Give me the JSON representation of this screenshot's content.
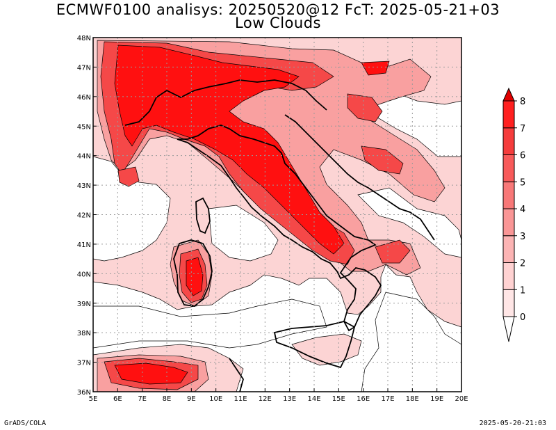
{
  "title": "ECMWF0100 analisys: 20250520@12 FcT: 2025-05-21+03",
  "subtitle": "Low Clouds",
  "map": {
    "lon_range": [
      5,
      20
    ],
    "lat_range": [
      36,
      48
    ],
    "lon_ticks": [
      "5E",
      "6E",
      "7E",
      "8E",
      "9E",
      "10E",
      "11E",
      "12E",
      "13E",
      "14E",
      "15E",
      "16E",
      "17E",
      "18E",
      "19E",
      "20E"
    ],
    "lat_ticks": [
      "36N",
      "37N",
      "38N",
      "39N",
      "40N",
      "41N",
      "42N",
      "43N",
      "44N",
      "45N",
      "46N",
      "47N",
      "48N"
    ],
    "grid": true,
    "field": "Low Clouds",
    "region": "Italy and surrounding seas"
  },
  "colorbar": {
    "levels": [
      "0",
      "1",
      "2",
      "3",
      "4",
      "5",
      "6",
      "7",
      "8"
    ],
    "colors": [
      "#ffe6e6",
      "#ffd2d2",
      "#fcb4b4",
      "#fa9696",
      "#f87878",
      "#f85a5a",
      "#f53c3c",
      "#ff2020",
      "#e00000"
    ],
    "extend": "both"
  },
  "footer": {
    "left": "GrADS/COLA",
    "right": "2025-05-20-21:03"
  }
}
